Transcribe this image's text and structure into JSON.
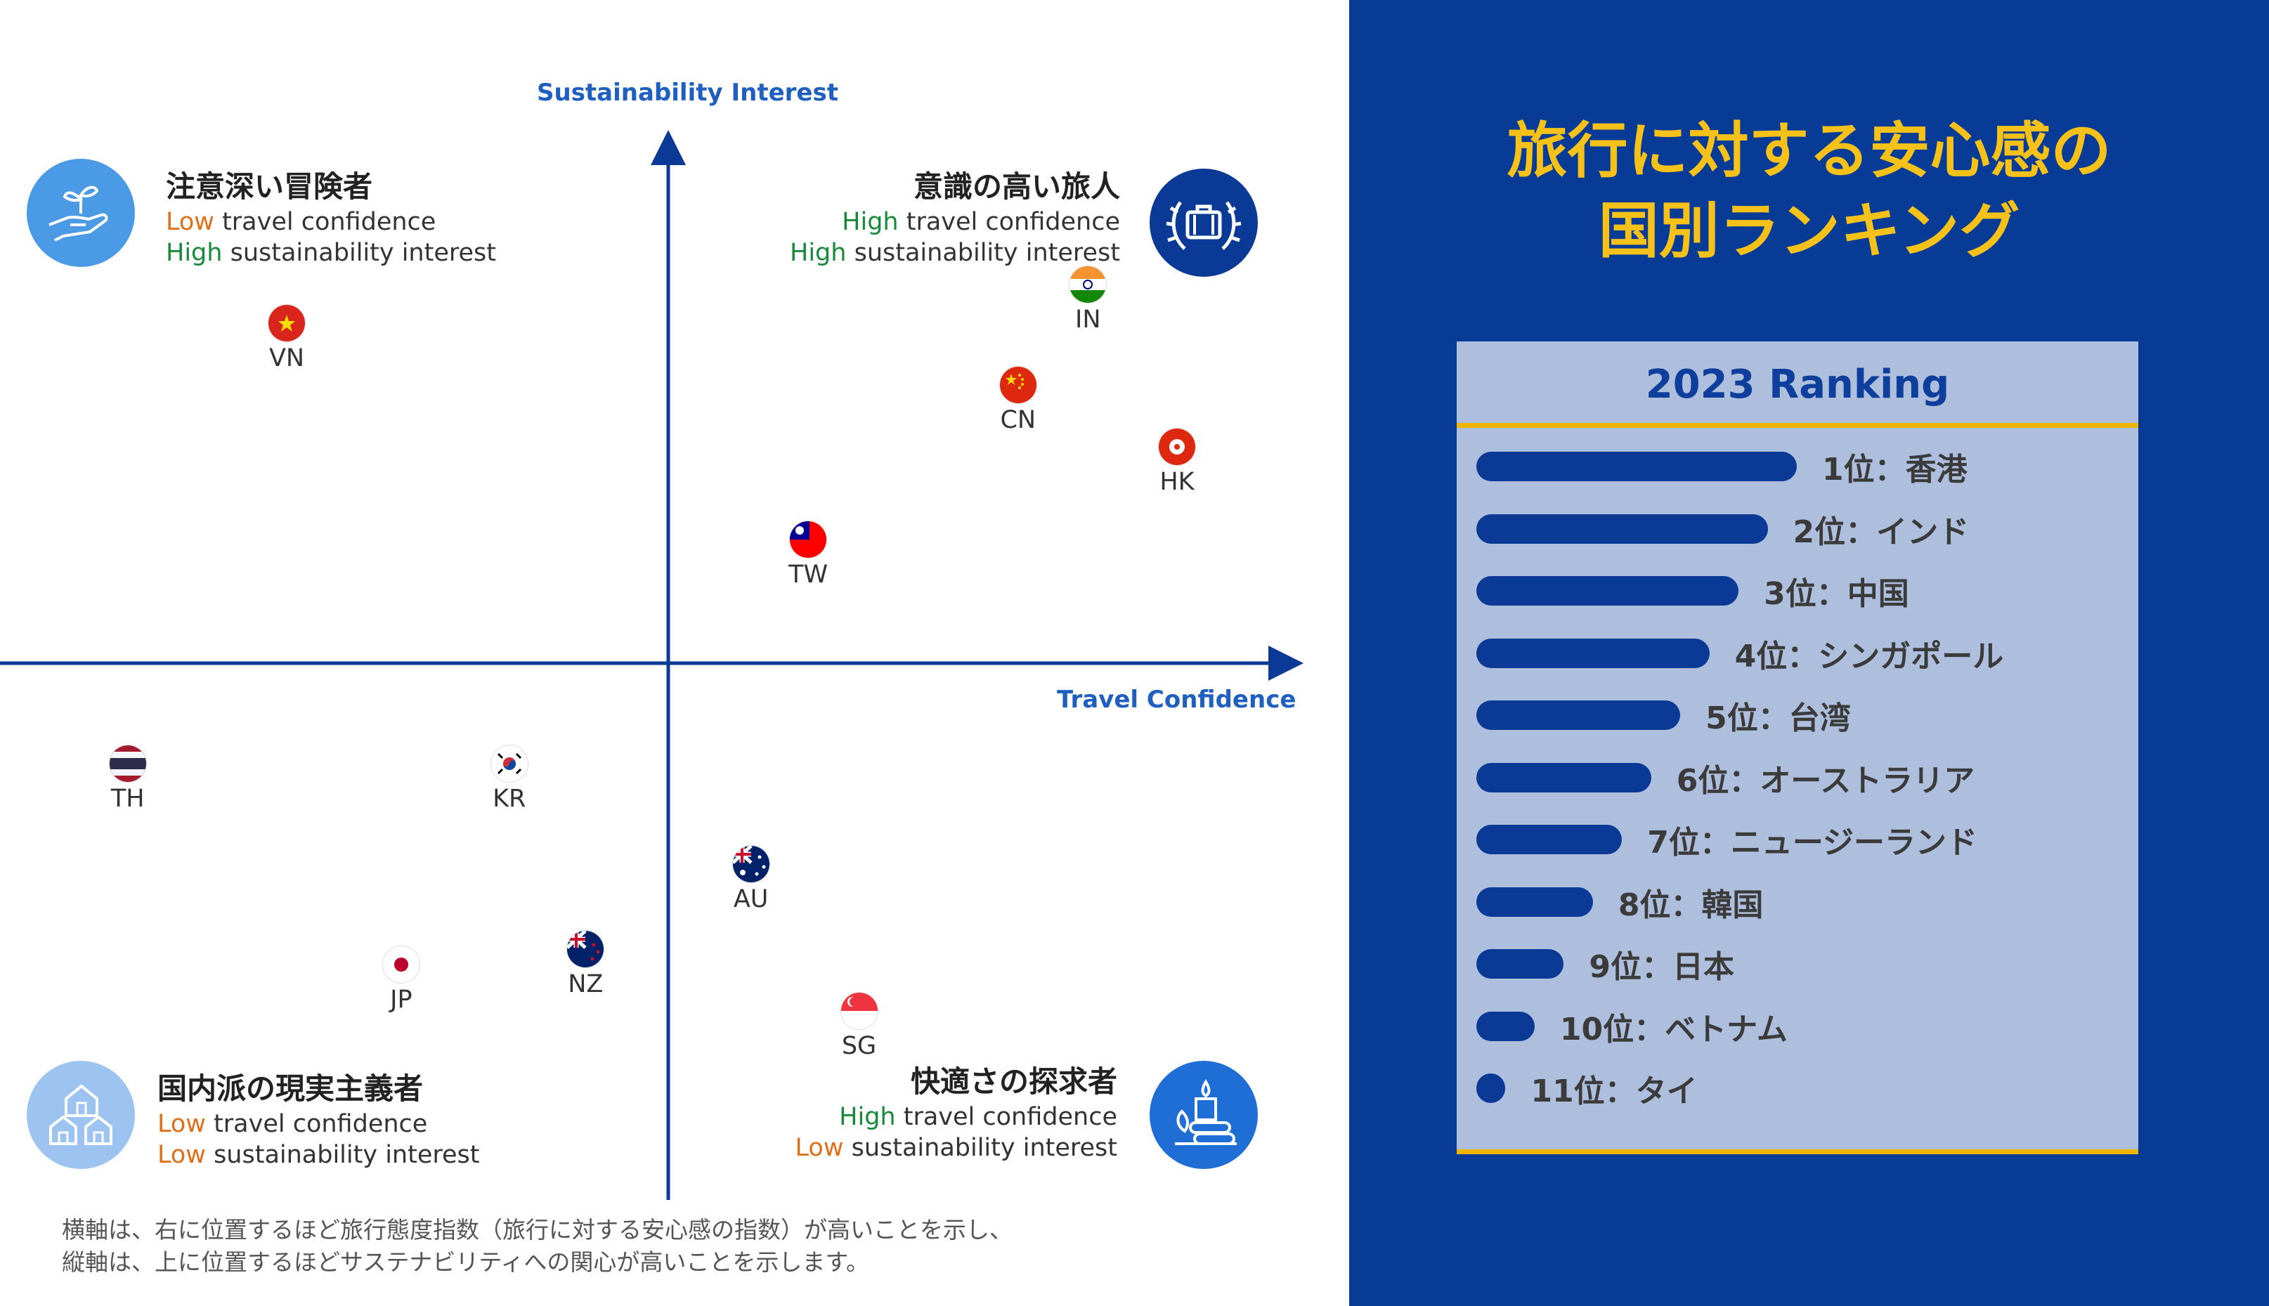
{
  "chart_data": {
    "type": "scatter",
    "xlabel": "Travel Confidence",
    "ylabel": "Sustainability Interest",
    "xlim": [
      -10,
      10
    ],
    "ylim": [
      -8,
      8
    ],
    "points": [
      {
        "label": "VN",
        "x": -6.0,
        "y": 4.4
      },
      {
        "label": "IN",
        "x": 6.6,
        "y": 4.9
      },
      {
        "label": "CN",
        "x": 5.5,
        "y": 3.6
      },
      {
        "label": "HK",
        "x": 8.0,
        "y": 2.8
      },
      {
        "label": "TW",
        "x": 2.2,
        "y": 1.6
      },
      {
        "label": "TH",
        "x": -8.5,
        "y": -1.3
      },
      {
        "label": "KR",
        "x": -2.5,
        "y": -1.3
      },
      {
        "label": "AU",
        "x": 1.3,
        "y": -2.6
      },
      {
        "label": "JP",
        "x": -4.2,
        "y": -3.9
      },
      {
        "label": "NZ",
        "x": -1.3,
        "y": -3.7
      },
      {
        "label": "SG",
        "x": 3.0,
        "y": -4.5
      }
    ],
    "quadrants": {
      "top_left": {
        "title": "注意深い冒険者",
        "line1_key": "Low",
        "line1_rest": " travel confidence",
        "line2_key": "High",
        "line2_rest": " sustainability interest"
      },
      "top_right": {
        "title": "意識の高い旅人",
        "line1_key": "High",
        "line1_rest": " travel confidence",
        "line2_key": "High",
        "line2_rest": " sustainability interest"
      },
      "bottom_left": {
        "title": "国内派の現実主義者",
        "line1_key": "Low",
        "line1_rest": " travel confidence",
        "line2_key": "Low",
        "line2_rest": " sustainability interest"
      },
      "bottom_right": {
        "title": "快適さの探求者",
        "line1_key": "High",
        "line1_rest": " travel confidence",
        "line2_key": "Low",
        "line2_rest": " sustainability interest"
      }
    }
  },
  "footnote": {
    "line1": "横軸は、右に位置するほど旅行態度指数（旅行に対する安心感の指数）が高いことを示し、",
    "line2": "縦軸は、上に位置するほどサステナビリティへの関心が高いことを示します。"
  },
  "panel": {
    "title_line1": "旅行に対する安心感の",
    "title_line2": "国別ランキング",
    "ranking_title": "2023 Ranking",
    "ranking": [
      {
        "label": "1位：香港",
        "value": 11
      },
      {
        "label": "2位：インド",
        "value": 10
      },
      {
        "label": "3位：中国",
        "value": 9
      },
      {
        "label": "4位：シンガポール",
        "value": 8
      },
      {
        "label": "5位：台湾",
        "value": 7
      },
      {
        "label": "6位：オーストラリア",
        "value": 6
      },
      {
        "label": "7位：ニュージーランド",
        "value": 5
      },
      {
        "label": "8位：韓国",
        "value": 4
      },
      {
        "label": "9位：日本",
        "value": 3
      },
      {
        "label": "10位：ベトナム",
        "value": 2
      },
      {
        "label": "11位：タイ",
        "value": 1
      }
    ]
  },
  "colors": {
    "high": "#198a3a",
    "low": "#e07018",
    "axis": "#0b3a96",
    "panel": "#073b96",
    "accent": "#f6c21a"
  }
}
